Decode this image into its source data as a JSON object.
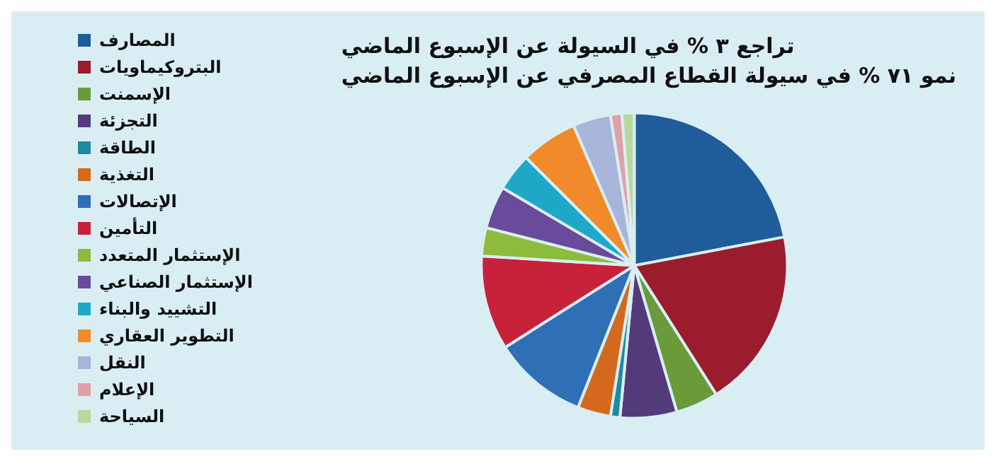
{
  "chart_data": {
    "type": "pie",
    "title": "تراجع ٣ % في السيولة عن الإسبوع الماضي",
    "subtitle": "نمو ٧١ % في سيولة القطاع المصرفي عن الإسبوع الماضي",
    "categories": [
      "المصارف",
      "البتروكيماويات",
      "الإسمنت",
      "التجزئة",
      "الطاقة",
      "التغذية",
      "الإتصالات",
      "التأمين",
      "الإستثمار المتعدد",
      "الإستثمار الصناعي",
      "التشييد والبناء",
      "التطوير العقاري",
      "النقل",
      "الإعلام",
      "السياحة"
    ],
    "values": [
      22,
      19,
      4.5,
      6,
      1,
      3.5,
      10,
      10,
      3,
      4.5,
      4,
      6,
      4,
      1.2,
      1.3
    ],
    "colors": [
      "#1f5c99",
      "#9b1c2c",
      "#6a9a3a",
      "#533a7a",
      "#1e8aa0",
      "#d4691e",
      "#2f6fb5",
      "#c8213a",
      "#8dbb3c",
      "#6a4a9a",
      "#20a8c8",
      "#f08a2a",
      "#a8b4d8",
      "#e0a0a8",
      "#b8d8a0"
    ],
    "legend": "left"
  }
}
